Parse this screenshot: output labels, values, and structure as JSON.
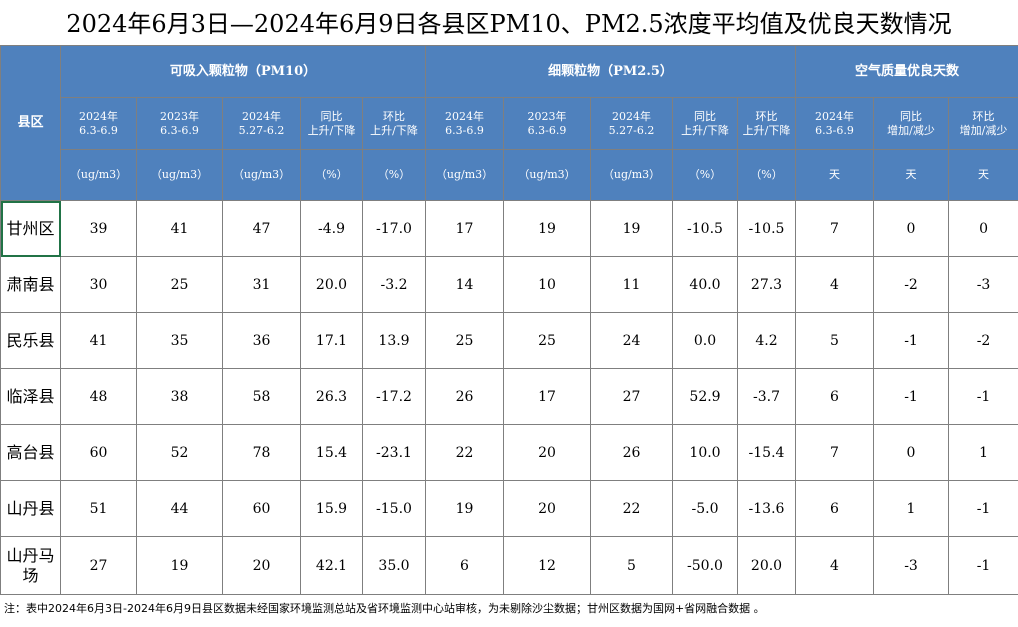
{
  "title": "2024年6月3日—2024年6月9日各县区PM10、PM2.5浓度平均值及优良天数情况",
  "header": {
    "county": "县区",
    "groups": [
      "可吸入颗粒物（PM10）",
      "细颗粒物（PM2.5）",
      "空气质量优良天数"
    ],
    "columns": [
      [
        "2024年",
        "6.3-6.9"
      ],
      [
        "2023年",
        "6.3-6.9"
      ],
      [
        "2024年",
        "5.27-6.2"
      ],
      [
        "同比",
        "上升/下降"
      ],
      [
        "环比",
        "上升/下降"
      ],
      [
        "2024年",
        "6.3-6.9"
      ],
      [
        "2023年",
        "6.3-6.9"
      ],
      [
        "2024年",
        "5.27-6.2"
      ],
      [
        "同比",
        "上升/下降"
      ],
      [
        "环比",
        "上升/下降"
      ],
      [
        "2024年",
        "6.3-6.9"
      ],
      [
        "同比",
        "增加/减少"
      ],
      [
        "环比",
        "增加/减少"
      ]
    ],
    "units": [
      "（ug/m3）",
      "（ug/m3）",
      "（ug/m3）",
      "（%）",
      "（%）",
      "（ug/m3）",
      "（ug/m3）",
      "（ug/m3）",
      "（%）",
      "（%）",
      "天",
      "天",
      "天"
    ]
  },
  "rows": [
    [
      "甘州区",
      "39",
      "41",
      "47",
      "-4.9",
      "-17.0",
      "17",
      "19",
      "19",
      "-10.5",
      "-10.5",
      "7",
      "0",
      "0"
    ],
    [
      "肃南县",
      "30",
      "25",
      "31",
      "20.0",
      "-3.2",
      "14",
      "10",
      "11",
      "40.0",
      "27.3",
      "4",
      "-2",
      "-3"
    ],
    [
      "民乐县",
      "41",
      "35",
      "36",
      "17.1",
      "13.9",
      "25",
      "25",
      "24",
      "0.0",
      "4.2",
      "5",
      "-1",
      "-2"
    ],
    [
      "临泽县",
      "48",
      "38",
      "58",
      "26.3",
      "-17.2",
      "26",
      "17",
      "27",
      "52.9",
      "-3.7",
      "6",
      "-1",
      "-1"
    ],
    [
      "高台县",
      "60",
      "52",
      "78",
      "15.4",
      "-23.1",
      "22",
      "20",
      "26",
      "10.0",
      "-15.4",
      "7",
      "0",
      "1"
    ],
    [
      "山丹县",
      "51",
      "44",
      "60",
      "15.9",
      "-15.0",
      "19",
      "20",
      "22",
      "-5.0",
      "-13.6",
      "6",
      "1",
      "-1"
    ],
    [
      "山丹马场",
      "27",
      "19",
      "20",
      "42.1",
      "35.0",
      "6",
      "12",
      "5",
      "-50.0",
      "20.0",
      "4",
      "-3",
      "-1"
    ]
  ],
  "note": "注：表中2024年6月3日-2024年6月9日县区数据未经国家环境监测总站及省环境监测中心站审核，为未剔除沙尘数据；甘州区数据为国网+省网融合数据 。"
}
